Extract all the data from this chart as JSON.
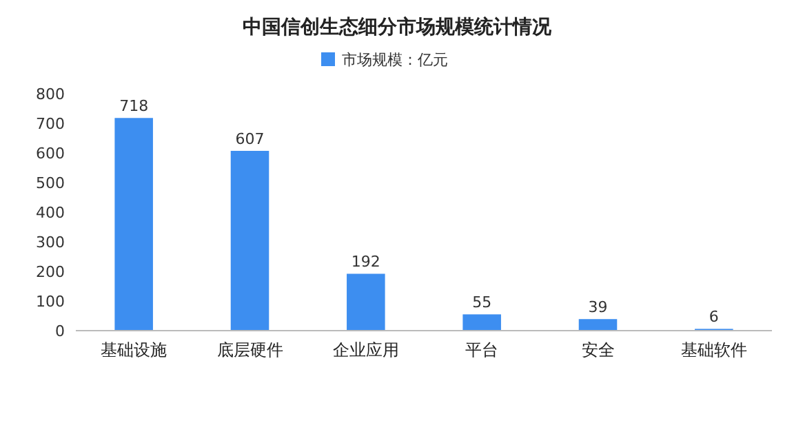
{
  "chart_data": {
    "type": "bar",
    "title": "中国信创生态细分市场规模统计情况",
    "categories": [
      "基础设施",
      "底层硬件",
      "企业应用",
      "平台",
      "安全",
      "基础软件"
    ],
    "series": [
      {
        "name": "市场规模：亿元",
        "color": "#3d8ef0",
        "values": [
          718,
          607,
          192,
          55,
          39,
          6
        ]
      }
    ],
    "ylim": [
      0,
      800
    ],
    "yticks": [
      0,
      100,
      200,
      300,
      400,
      500,
      600,
      700,
      800
    ],
    "data_labels": true,
    "legend": "top",
    "grid": false
  }
}
